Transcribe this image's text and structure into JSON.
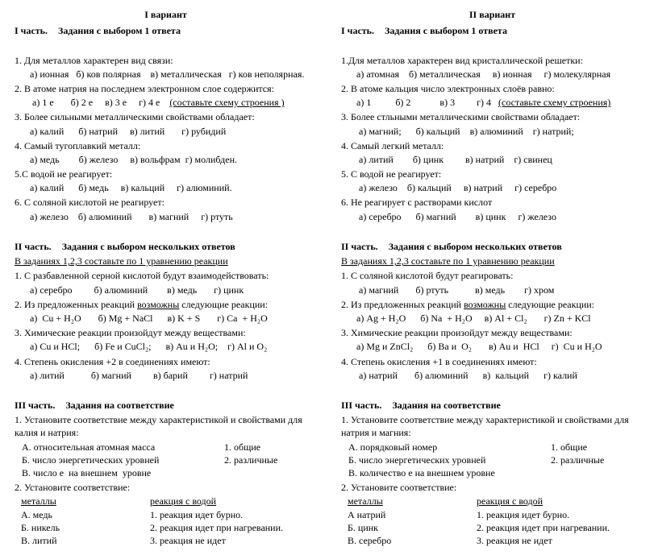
{
  "left": {
    "title": "I вариант",
    "part1_head_a": "I часть.",
    "part1_head_b": "Задания с выбором 1 ответа",
    "q1": "1. Для металлов характерен вид связи:",
    "q1_opts": "   а) ионная   б) ков полярная    в) металлическая   г) ков неполярная.",
    "q2": "2. В атоме натрия на последнем электронном слое содержится:",
    "q2_opts_a": "    а) 1 е       б) 2 е     в) 3 е     г) 4 е    ",
    "q2_opts_b": "(составьте схему строения )",
    "q3": "3. Более сильными металлическими свойствами обладает:",
    "q3_opts": "   а) калий      б) натрий     в) литий       г) рубидий",
    "q4": "4.  Самый тугоплавкий металл:",
    "q4_opts": "   а) медь        б) железо     в) вольфрам  г) молибден.",
    "q5": "5.С водой не реагирует:",
    "q5_opts": "   а) калий      б) медь     в) кальций     г) алюминий.",
    "q6": "6. С соляной кислотой не реагирует:",
    "q6_opts": "   а) железо    б) алюминий       в) магний     г) ртуть",
    "part2_head_a": "II часть.",
    "part2_head_b": "Задания с выбором нескольких ответов",
    "p2_instr": "В заданиях 1,2,3 составьте по 1 уравнению реакции",
    "p2_q1": "1. С разбавленной серной кислотой будут взаимодействовать:",
    "p2_q1_opts": "   а) серебро         б) алюминий        в) медь       г) цинк",
    "p2_q2_a": "2. Из предложенных реакций ",
    "p2_q2_b": "возможны",
    "p2_q2_c": " следующие реакции:",
    "p2_q2_opts": "   а)  Cu + H₂O       б) Mg + NaCl      в) K + S       г) Ca  + H₂O",
    "p2_q3": "3. Химические реакции произойдут между  веществами:",
    "p2_q3_opts": "   а) Cu и HCl;      б) Fe и CuCl₂;      в) Au и H₂O;    г) Al и O₂",
    "p2_q4": "4. Степень окисления +2 в соединениях имеют:",
    "p2_q4_opts": "   а) литий           б) магний         в) барий         г) натрий",
    "part3_head_a": "III часть.",
    "part3_head_b": "Задания на соответствие",
    "p3_q1": "1. Установите соответствие между характеристикой и свойствами для калия и натрия:",
    "p3_q1_a_l": "   А. относительная атомная масса",
    "p3_q1_a_r": "1. общие",
    "p3_q1_b_l": "   Б. число энергетических уровней",
    "p3_q1_b_r": "2. различные",
    "p3_q1_c": "   В. число е  на внешнем  уровне",
    "p3_q2": "2. Установите соответствие:",
    "p3_t_h1": "металлы",
    "p3_t_h2": "реакция с водой",
    "p3_r1_l": "А. медь",
    "p3_r1_r": "1. реакция идет бурно.",
    "p3_r2_l": "Б. никель",
    "p3_r2_r": "2. реакция идет при нагревании.",
    "p3_r3_l": "В. литий",
    "p3_r3_r": "3. реакция не идет"
  },
  "right": {
    "title": "II вариант",
    "part1_head_a": "I часть.",
    "part1_head_b": "Задания с выбором 1 ответа",
    "q1": "1.Для металлов характерен вид кристаллической решетки:",
    "q1_opts": "   а) атомная    б) металлическая     в) ионная     г) молекулярная",
    "q2": "2. В атоме кальция число электронных слоёв равно:",
    "q2_opts_a": "   а) 1          б) 2            в) 3         г) 4   ",
    "q2_opts_b": "(составьте схему строения)",
    "q3": "3.  Более стльными металлическими свойствами обладает:",
    "q3_opts": "    а) магний;      б) кальций    в) алюминий    г) натрий;",
    "q4": "4.  Самый легкий металл:",
    "q4_opts": "    а) литий        б) цинк         в) натрий    г) свинец",
    "q5": "5. С водой не реагирует:",
    "q5_opts": "    а) железо    б) кальций     в) натрий     г) серебро",
    "q6": "6.  Не реагирует с растворами кислот",
    "q6_opts": "    а) серебро      б) магний        в) цинк     г) железо",
    "part2_head_a": "II часть.",
    "part2_head_b": "Задания с выбором нескольких ответов",
    "p2_instr": "В заданиях 1,2,3 составьте по 1 уравнению реакции",
    "p2_q1": "1. С соляной кислотой будут реагировать:",
    "p2_q1_opts": "    а) магний       б) ртуть           в) медь        г) хром",
    "p2_q2_a": "2. Из предложенных реакций ",
    "p2_q2_b": "возможны",
    "p2_q2_c": " следующие реакции:",
    "p2_q2_opts": "   а) Ag + H₂O      б) Na  + H₂O     в) Al + Cl₂       г) Zn + KCl",
    "p2_q3": "3. Химические реакции произойдут между  веществами:",
    "p2_q3_opts": "   а) Mg и ZnCl₂      б) Ba и  O₂       в) Au и  HCl     г)  Cu и H₂O",
    "p2_q4": "4.  Степень окисления +1 в соединениях имеют:",
    "p2_q4_opts": "    а) натрий       б) алюминий      в)  кальций      г) калий",
    "part3_head_a": "III часть.",
    "part3_head_b": "Задания на соответствие",
    "p3_q1": "1. Установите соответствие между характеристикой и свойствами для натрия и магния:",
    "p3_q1_a_l": "   А. порядковый номер",
    "p3_q1_a_r": "1. общие",
    "p3_q1_b_l": "   Б. число энергетических уровней",
    "p3_q1_b_r": "2. различные",
    "p3_q1_c": "   В. количество е на внешнем уровне",
    "p3_q2": "2. Установите соответствие:",
    "p3_t_h1": "металлы",
    "p3_t_h2": "реакция с водой",
    "p3_r1_l": "А натрий",
    "p3_r1_r": "1. реакция идет бурно.",
    "p3_r2_l": "Б. цинк",
    "p3_r2_r": "2. реакция идет при нагревании.",
    "p3_r3_l": "В. серебро",
    "p3_r3_r": "3. реакция не идет"
  }
}
